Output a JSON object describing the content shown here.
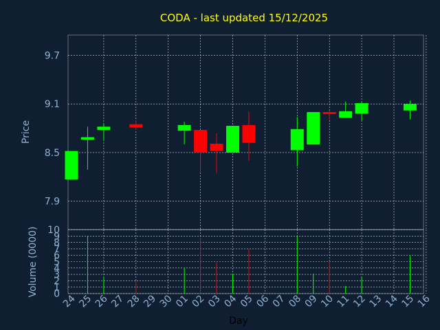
{
  "chart_data": {
    "type": "candlestick",
    "title": "CODA - last updated 15/12/2025",
    "ylabel": "Price",
    "volume_ylabel": "Volume (0000)",
    "xlabel": "Day",
    "colors": {
      "up": "#00ff00",
      "down": "#ff0000",
      "grid": "#ffffff",
      "background": "#0f1e30",
      "title": "#ffff00",
      "axis_text": "#8fb4d6"
    },
    "price_ylim": [
      7.55,
      9.95
    ],
    "price_yticks": [
      "7.9",
      "8.5",
      "9.1",
      "9.7"
    ],
    "volume_ylim": [
      0,
      10
    ],
    "volume_yticks": [
      "0",
      "1",
      "2",
      "3",
      "4",
      "5",
      "6",
      "7",
      "8",
      "9",
      "10"
    ],
    "x_ticks": [
      "24",
      "25",
      "26",
      "27",
      "28",
      "29",
      "30",
      "01",
      "02",
      "03",
      "04",
      "05",
      "06",
      "07",
      "08",
      "09",
      "10",
      "11",
      "12",
      "13",
      "14",
      "15",
      "16"
    ],
    "candles": [
      {
        "day": "24",
        "open": 8.17,
        "high": 8.52,
        "low": 8.17,
        "close": 8.52,
        "volume": 0
      },
      {
        "day": "25",
        "open": 8.66,
        "high": 8.82,
        "low": 8.29,
        "close": 8.69,
        "volume": 9.0
      },
      {
        "day": "26",
        "open": 8.78,
        "high": 8.86,
        "low": 8.66,
        "close": 8.82,
        "volume": 2.5
      },
      {
        "day": "28",
        "open": 8.85,
        "high": 8.9,
        "low": 8.78,
        "close": 8.81,
        "volume": 2.0
      },
      {
        "day": "01",
        "open": 8.77,
        "high": 8.88,
        "low": 8.6,
        "close": 8.84,
        "volume": 4.0
      },
      {
        "day": "02",
        "open": 8.78,
        "high": 8.78,
        "low": 8.25,
        "close": 8.5,
        "volume": 8.7
      },
      {
        "day": "03",
        "open": 8.61,
        "high": 8.74,
        "low": 8.25,
        "close": 8.52,
        "volume": 4.9
      },
      {
        "day": "04",
        "open": 8.5,
        "high": 8.83,
        "low": 8.5,
        "close": 8.83,
        "volume": 3.1
      },
      {
        "day": "05",
        "open": 8.84,
        "high": 9.0,
        "low": 8.4,
        "close": 8.62,
        "volume": 7.0
      },
      {
        "day": "08",
        "open": 8.53,
        "high": 8.94,
        "low": 8.33,
        "close": 8.79,
        "volume": 9.0
      },
      {
        "day": "09",
        "open": 8.6,
        "high": 9.0,
        "low": 8.6,
        "close": 9.0,
        "volume": 3.1
      },
      {
        "day": "10",
        "open": 9.0,
        "high": 9.02,
        "low": 8.9,
        "close": 8.98,
        "volume": 5.1
      },
      {
        "day": "11",
        "open": 8.93,
        "high": 9.13,
        "low": 8.93,
        "close": 9.01,
        "volume": 1.2
      },
      {
        "day": "12",
        "open": 8.98,
        "high": 9.12,
        "low": 8.9,
        "close": 9.11,
        "volume": 2.6
      },
      {
        "day": "15",
        "open": 9.02,
        "high": 9.14,
        "low": 8.91,
        "close": 9.1,
        "volume": 5.9
      }
    ]
  }
}
